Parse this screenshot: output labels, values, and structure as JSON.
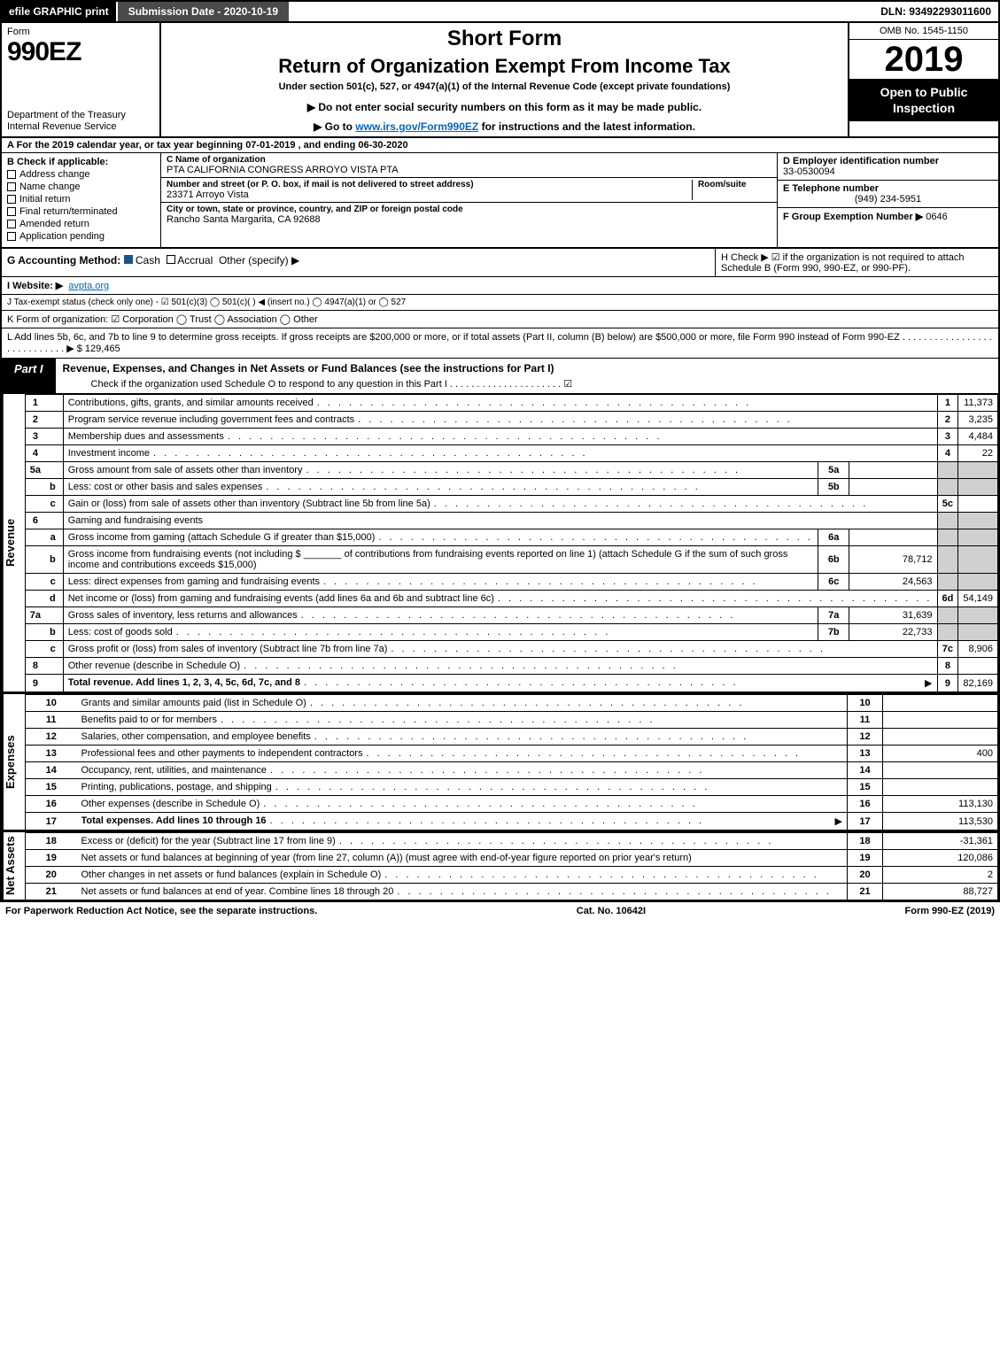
{
  "topbar": {
    "efile": "efile GRAPHIC print",
    "submission": "Submission Date - 2020-10-19",
    "dln": "DLN: 93492293011600"
  },
  "header": {
    "form_word": "Form",
    "form_num": "990EZ",
    "dept": "Department of the Treasury\nInternal Revenue Service",
    "short_form": "Short Form",
    "title": "Return of Organization Exempt From Income Tax",
    "under": "Under section 501(c), 527, or 4947(a)(1) of the Internal Revenue Code (except private foundations)",
    "notice": "▶ Do not enter social security numbers on this form as it may be made public.",
    "goto_prefix": "▶ Go to ",
    "goto_link": "www.irs.gov/Form990EZ",
    "goto_suffix": " for instructions and the latest information.",
    "omb": "OMB No. 1545-1150",
    "year": "2019",
    "open": "Open to Public Inspection"
  },
  "section_a": "A For the 2019 calendar year, or tax year beginning 07-01-2019 , and ending 06-30-2020",
  "col_b": {
    "title": "B Check if applicable:",
    "items": [
      "Address change",
      "Name change",
      "Initial return",
      "Final return/terminated",
      "Amended return",
      "Application pending"
    ]
  },
  "col_c": {
    "name_lbl": "C Name of organization",
    "name": "PTA CALIFORNIA CONGRESS ARROYO VISTA PTA",
    "addr_lbl": "Number and street (or P. O. box, if mail is not delivered to street address)",
    "room_lbl": "Room/suite",
    "addr": "23371 Arroyo Vista",
    "city_lbl": "City or town, state or province, country, and ZIP or foreign postal code",
    "city": "Rancho Santa Margarita, CA  92688"
  },
  "col_d": {
    "ein_lbl": "D Employer identification number",
    "ein": "33-0530094",
    "tel_lbl": "E Telephone number",
    "tel": "(949) 234-5951",
    "grp_lbl": "F Group Exemption Number  ▶",
    "grp": "0646"
  },
  "row_g": {
    "label": "G Accounting Method:",
    "cash": "Cash",
    "accrual": "Accrual",
    "other": "Other (specify) ▶"
  },
  "row_h": "H Check ▶ ☑ if the organization is not required to attach Schedule B (Form 990, 990-EZ, or 990-PF).",
  "row_i_lbl": "I Website: ▶",
  "row_i_val": "avpta.org",
  "row_j": "J Tax-exempt status (check only one) - ☑ 501(c)(3)  ◯ 501(c)( ) ◀ (insert no.)  ◯ 4947(a)(1) or  ◯ 527",
  "row_k": "K Form of organization:  ☑ Corporation  ◯ Trust  ◯ Association  ◯ Other",
  "row_l": "L Add lines 5b, 6c, and 7b to line 9 to determine gross receipts. If gross receipts are $200,000 or more, or if total assets (Part II, column (B) below) are $500,000 or more, file Form 990 instead of Form 990-EZ . . . . . . . . . . . . . . . . . . . . . . . . . . . . ▶ $ 129,465",
  "part1": {
    "tab": "Part I",
    "title": "Revenue, Expenses, and Changes in Net Assets or Fund Balances (see the instructions for Part I)",
    "check": "Check if the organization used Schedule O to respond to any question in this Part I . . . . . . . . . . . . . . . . . . . . . ☑"
  },
  "sections": {
    "revenue": "Revenue",
    "expenses": "Expenses",
    "netassets": "Net Assets"
  },
  "lines": [
    {
      "n": "1",
      "sub": "",
      "desc": "Contributions, gifts, grants, and similar amounts received",
      "box": "1",
      "amt": "11,373"
    },
    {
      "n": "2",
      "sub": "",
      "desc": "Program service revenue including government fees and contracts",
      "box": "2",
      "amt": "3,235"
    },
    {
      "n": "3",
      "sub": "",
      "desc": "Membership dues and assessments",
      "box": "3",
      "amt": "4,484"
    },
    {
      "n": "4",
      "sub": "",
      "desc": "Investment income",
      "box": "4",
      "amt": "22"
    },
    {
      "n": "5a",
      "sub": "",
      "desc": "Gross amount from sale of assets other than inventory",
      "subbox": "5a",
      "subamt": "",
      "box": "",
      "amt": "",
      "grey": true
    },
    {
      "n": "",
      "sub": "b",
      "desc": "Less: cost or other basis and sales expenses",
      "subbox": "5b",
      "subamt": "",
      "box": "",
      "amt": "",
      "grey": true
    },
    {
      "n": "",
      "sub": "c",
      "desc": "Gain or (loss) from sale of assets other than inventory (Subtract line 5b from line 5a)",
      "box": "5c",
      "amt": ""
    },
    {
      "n": "6",
      "sub": "",
      "desc": "Gaming and fundraising events",
      "box": "",
      "amt": "",
      "grey": true,
      "nobox": true
    },
    {
      "n": "",
      "sub": "a",
      "desc": "Gross income from gaming (attach Schedule G if greater than $15,000)",
      "subbox": "6a",
      "subamt": "",
      "box": "",
      "amt": "",
      "grey": true
    },
    {
      "n": "",
      "sub": "b",
      "desc": "Gross income from fundraising events (not including $ _______ of contributions from fundraising events reported on line 1) (attach Schedule G if the sum of such gross income and contributions exceeds $15,000)",
      "subbox": "6b",
      "subamt": "78,712",
      "box": "",
      "amt": "",
      "grey": true,
      "multiline": true
    },
    {
      "n": "",
      "sub": "c",
      "desc": "Less: direct expenses from gaming and fundraising events",
      "subbox": "6c",
      "subamt": "24,563",
      "box": "",
      "amt": "",
      "grey": true
    },
    {
      "n": "",
      "sub": "d",
      "desc": "Net income or (loss) from gaming and fundraising events (add lines 6a and 6b and subtract line 6c)",
      "box": "6d",
      "amt": "54,149"
    },
    {
      "n": "7a",
      "sub": "",
      "desc": "Gross sales of inventory, less returns and allowances",
      "subbox": "7a",
      "subamt": "31,639",
      "box": "",
      "amt": "",
      "grey": true
    },
    {
      "n": "",
      "sub": "b",
      "desc": "Less: cost of goods sold",
      "subbox": "7b",
      "subamt": "22,733",
      "box": "",
      "amt": "",
      "grey": true
    },
    {
      "n": "",
      "sub": "c",
      "desc": "Gross profit or (loss) from sales of inventory (Subtract line 7b from line 7a)",
      "box": "7c",
      "amt": "8,906"
    },
    {
      "n": "8",
      "sub": "",
      "desc": "Other revenue (describe in Schedule O)",
      "box": "8",
      "amt": ""
    },
    {
      "n": "9",
      "sub": "",
      "desc": "Total revenue. Add lines 1, 2, 3, 4, 5c, 6d, 7c, and 8",
      "box": "9",
      "amt": "82,169",
      "bold": true,
      "arrow": true
    }
  ],
  "expense_lines": [
    {
      "n": "10",
      "desc": "Grants and similar amounts paid (list in Schedule O)",
      "box": "10",
      "amt": ""
    },
    {
      "n": "11",
      "desc": "Benefits paid to or for members",
      "box": "11",
      "amt": ""
    },
    {
      "n": "12",
      "desc": "Salaries, other compensation, and employee benefits",
      "box": "12",
      "amt": ""
    },
    {
      "n": "13",
      "desc": "Professional fees and other payments to independent contractors",
      "box": "13",
      "amt": "400"
    },
    {
      "n": "14",
      "desc": "Occupancy, rent, utilities, and maintenance",
      "box": "14",
      "amt": ""
    },
    {
      "n": "15",
      "desc": "Printing, publications, postage, and shipping",
      "box": "15",
      "amt": ""
    },
    {
      "n": "16",
      "desc": "Other expenses (describe in Schedule O)",
      "box": "16",
      "amt": "113,130"
    },
    {
      "n": "17",
      "desc": "Total expenses. Add lines 10 through 16",
      "box": "17",
      "amt": "113,530",
      "bold": true,
      "arrow": true
    }
  ],
  "netasset_lines": [
    {
      "n": "18",
      "desc": "Excess or (deficit) for the year (Subtract line 17 from line 9)",
      "box": "18",
      "amt": "-31,361"
    },
    {
      "n": "19",
      "desc": "Net assets or fund balances at beginning of year (from line 27, column (A)) (must agree with end-of-year figure reported on prior year's return)",
      "box": "19",
      "amt": "120,086",
      "multiline": true
    },
    {
      "n": "20",
      "desc": "Other changes in net assets or fund balances (explain in Schedule O)",
      "box": "20",
      "amt": "2"
    },
    {
      "n": "21",
      "desc": "Net assets or fund balances at end of year. Combine lines 18 through 20",
      "box": "21",
      "amt": "88,727"
    }
  ],
  "footer": {
    "left": "For Paperwork Reduction Act Notice, see the separate instructions.",
    "mid": "Cat. No. 10642I",
    "right": "Form 990-EZ (2019)"
  },
  "colors": {
    "black": "#000000",
    "grey_cell": "#d0d0d0",
    "link": "#0066cc",
    "check_blue": "#1a5490"
  }
}
